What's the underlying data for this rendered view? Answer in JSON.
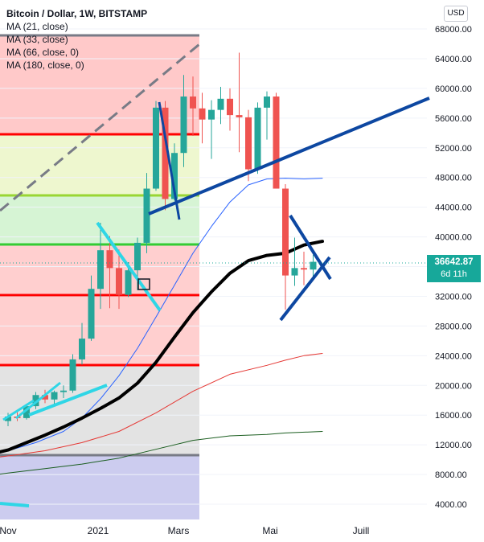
{
  "header": {
    "title": "Bitcoin / Dollar, 1W, BITSTAMP",
    "indicators": [
      "MA (21, close)",
      "MA (33, close)",
      "MA (66, close, 0)",
      "MA (180, close, 0)"
    ],
    "currency_button": "USD"
  },
  "price_tag": {
    "price": "36642.87",
    "countdown": "6d 11h"
  },
  "colors": {
    "up": "#26a69a",
    "down": "#ef5350",
    "ma21": "#2962ff",
    "ma33": "#000000",
    "ma66": "#e53935",
    "ma180": "#1b5e20",
    "trendline": "#0d47a1",
    "cyan": "#2fd6e6",
    "support_red": "#ff0000",
    "level_green": "#33cc33",
    "level_lime": "#99d633",
    "level_gray": "#787b86"
  },
  "chart_data": {
    "type": "candlestick",
    "y_scale": "linear",
    "ylim": [
      2000,
      70000
    ],
    "y_ticks": [
      "4000.00",
      "8000.00",
      "12000.00",
      "16000.00",
      "20000.00",
      "24000.00",
      "28000.00",
      "32000.00",
      "36000.00",
      "40000.00",
      "44000.00",
      "48000.00",
      "52000.00",
      "56000.00",
      "60000.00",
      "64000.00",
      "68000.00"
    ],
    "x_labels": [
      "Nov",
      "2021",
      "Mars",
      "Mai",
      "Juill"
    ],
    "candles": [
      {
        "o": 15200,
        "h": 16300,
        "l": 14500,
        "c": 15800
      },
      {
        "o": 15800,
        "h": 16500,
        "l": 15200,
        "c": 15600
      },
      {
        "o": 15600,
        "h": 17500,
        "l": 15400,
        "c": 17200
      },
      {
        "o": 17200,
        "h": 19100,
        "l": 16800,
        "c": 18700
      },
      {
        "o": 18700,
        "h": 19400,
        "l": 17600,
        "c": 18100
      },
      {
        "o": 18100,
        "h": 19300,
        "l": 17500,
        "c": 19100
      },
      {
        "o": 19100,
        "h": 20000,
        "l": 18300,
        "c": 19300
      },
      {
        "o": 19300,
        "h": 24200,
        "l": 19000,
        "c": 23500
      },
      {
        "o": 23500,
        "h": 28400,
        "l": 22800,
        "c": 26300
      },
      {
        "o": 26300,
        "h": 34800,
        "l": 26000,
        "c": 33000
      },
      {
        "o": 33000,
        "h": 41900,
        "l": 30300,
        "c": 38200
      },
      {
        "o": 38200,
        "h": 40100,
        "l": 30400,
        "c": 35800
      },
      {
        "o": 35800,
        "h": 38300,
        "l": 30300,
        "c": 32200
      },
      {
        "o": 32200,
        "h": 36600,
        "l": 31900,
        "c": 35500
      },
      {
        "o": 35500,
        "h": 39900,
        "l": 32800,
        "c": 39200
      },
      {
        "o": 39200,
        "h": 48600,
        "l": 37800,
        "c": 46500
      },
      {
        "o": 46500,
        "h": 58300,
        "l": 46200,
        "c": 57400
      },
      {
        "o": 57400,
        "h": 58300,
        "l": 43600,
        "c": 45100
      },
      {
        "o": 45100,
        "h": 52600,
        "l": 44900,
        "c": 51300
      },
      {
        "o": 51300,
        "h": 61800,
        "l": 49400,
        "c": 58900
      },
      {
        "o": 58900,
        "h": 61600,
        "l": 53600,
        "c": 57300
      },
      {
        "o": 57300,
        "h": 59400,
        "l": 52600,
        "c": 55800
      },
      {
        "o": 55800,
        "h": 58400,
        "l": 50500,
        "c": 57100
      },
      {
        "o": 57100,
        "h": 60200,
        "l": 55200,
        "c": 58600
      },
      {
        "o": 58600,
        "h": 60000,
        "l": 54300,
        "c": 56400
      },
      {
        "o": 56400,
        "h": 64800,
        "l": 51400,
        "c": 56100
      },
      {
        "o": 56100,
        "h": 57100,
        "l": 47500,
        "c": 49100
      },
      {
        "o": 49100,
        "h": 58100,
        "l": 48500,
        "c": 57400
      },
      {
        "o": 57400,
        "h": 59600,
        "l": 53100,
        "c": 58900
      },
      {
        "o": 58900,
        "h": 59400,
        "l": 46800,
        "c": 46500
      },
      {
        "o": 46500,
        "h": 47100,
        "l": 30200,
        "c": 34800
      },
      {
        "o": 34800,
        "h": 39900,
        "l": 33400,
        "c": 35800
      },
      {
        "o": 35800,
        "h": 38000,
        "l": 33500,
        "c": 35600
      },
      {
        "o": 35600,
        "h": 37600,
        "l": 34700,
        "c": 36642.87
      }
    ],
    "moving_averages": [
      {
        "name": "MA (21, close)",
        "points": [
          [
            -4,
            10500
          ],
          [
            -2,
            10800
          ],
          [
            0,
            11200
          ],
          [
            3,
            12300
          ],
          [
            6,
            13800
          ],
          [
            8,
            15600
          ],
          [
            10,
            18200
          ],
          [
            12,
            21300
          ],
          [
            14,
            25000
          ],
          [
            16,
            29200
          ],
          [
            18,
            33500
          ],
          [
            20,
            37800
          ],
          [
            22,
            41400
          ],
          [
            24,
            44700
          ],
          [
            26,
            47000
          ],
          [
            28,
            47800
          ],
          [
            30,
            47900
          ],
          [
            32,
            47800
          ],
          [
            34,
            47900
          ]
        ]
      },
      {
        "name": "MA (33, close)",
        "points": [
          [
            -4,
            10300
          ],
          [
            -2,
            10700
          ],
          [
            0,
            11300
          ],
          [
            2,
            12300
          ],
          [
            4,
            13300
          ],
          [
            6,
            14400
          ],
          [
            8,
            15600
          ],
          [
            10,
            16900
          ],
          [
            12,
            18300
          ],
          [
            14,
            20300
          ],
          [
            16,
            23100
          ],
          [
            18,
            26500
          ],
          [
            20,
            29800
          ],
          [
            22,
            32600
          ],
          [
            24,
            35100
          ],
          [
            26,
            36800
          ],
          [
            28,
            37500
          ],
          [
            30,
            37800
          ],
          [
            32,
            38900
          ],
          [
            34,
            39400
          ]
        ]
      },
      {
        "name": "MA (66, close, 0)",
        "points": [
          [
            -4,
            9900
          ],
          [
            0,
            10500
          ],
          [
            4,
            11200
          ],
          [
            8,
            12300
          ],
          [
            12,
            13800
          ],
          [
            16,
            16300
          ],
          [
            20,
            19200
          ],
          [
            24,
            21500
          ],
          [
            28,
            22700
          ],
          [
            30,
            23400
          ],
          [
            32,
            24000
          ],
          [
            34,
            24300
          ]
        ]
      },
      {
        "name": "MA (180, close, 0)",
        "points": [
          [
            -4,
            7500
          ],
          [
            0,
            8200
          ],
          [
            4,
            8800
          ],
          [
            8,
            9400
          ],
          [
            12,
            10200
          ],
          [
            16,
            11400
          ],
          [
            20,
            12600
          ],
          [
            24,
            13200
          ],
          [
            28,
            13400
          ],
          [
            30,
            13600
          ],
          [
            34,
            13800
          ]
        ]
      }
    ]
  }
}
